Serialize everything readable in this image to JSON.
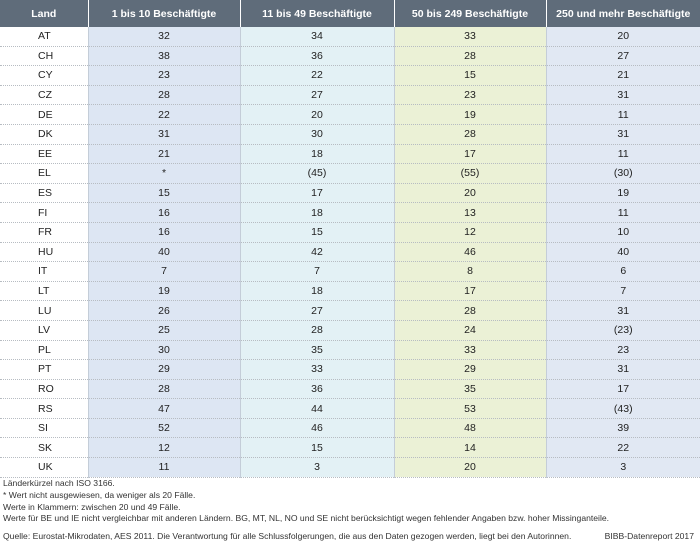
{
  "table": {
    "headers": [
      "Land",
      "1 bis 10 Beschäftigte",
      "11 bis 49 Beschäftigte",
      "50 bis 249 Beschäftigte",
      "250 und mehr Beschäftigte"
    ],
    "rows": [
      [
        "AT",
        "32",
        "34",
        "33",
        "20"
      ],
      [
        "CH",
        "38",
        "36",
        "28",
        "27"
      ],
      [
        "CY",
        "23",
        "22",
        "15",
        "21"
      ],
      [
        "CZ",
        "28",
        "27",
        "23",
        "31"
      ],
      [
        "DE",
        "22",
        "20",
        "19",
        "11"
      ],
      [
        "DK",
        "31",
        "30",
        "28",
        "31"
      ],
      [
        "EE",
        "21",
        "18",
        "17",
        "11"
      ],
      [
        "EL",
        "*",
        "(45)",
        "(55)",
        "(30)"
      ],
      [
        "ES",
        "15",
        "17",
        "20",
        "19"
      ],
      [
        "FI",
        "16",
        "18",
        "13",
        "11"
      ],
      [
        "FR",
        "16",
        "15",
        "12",
        "10"
      ],
      [
        "HU",
        "40",
        "42",
        "46",
        "40"
      ],
      [
        "IT",
        "7",
        "7",
        "8",
        "6"
      ],
      [
        "LT",
        "19",
        "18",
        "17",
        "7"
      ],
      [
        "LU",
        "26",
        "27",
        "28",
        "31"
      ],
      [
        "LV",
        "25",
        "28",
        "24",
        "(23)"
      ],
      [
        "PL",
        "30",
        "35",
        "33",
        "23"
      ],
      [
        "PT",
        "29",
        "33",
        "29",
        "31"
      ],
      [
        "RO",
        "28",
        "36",
        "35",
        "17"
      ],
      [
        "RS",
        "47",
        "44",
        "53",
        "(43)"
      ],
      [
        "SI",
        "52",
        "46",
        "48",
        "39"
      ],
      [
        "SK",
        "12",
        "15",
        "14",
        "22"
      ],
      [
        "UK",
        "11",
        "3",
        "20",
        "3"
      ]
    ]
  },
  "notes": {
    "line1": "Länderkürzel nach ISO 3166.",
    "line2": "* Wert nicht ausgewiesen, da weniger als 20 Fälle.",
    "line3": "Werte in Klammern: zwischen 20 und 49 Fälle.",
    "line4": "Werte für BE und IE nicht vergleichbar mit anderen Ländern. BG, MT, NL, NO und SE nicht berücksichtigt wegen fehlender Angaben bzw. hoher Missinganteile.",
    "source": "Quelle: Eurostat-Mikrodaten, AES 2011. Die Verantwortung für alle Schlussfolgerungen, die aus den Daten gezogen werden, liegt bei den Autorinnen.",
    "credit": "BIBB-Datenreport 2017"
  }
}
